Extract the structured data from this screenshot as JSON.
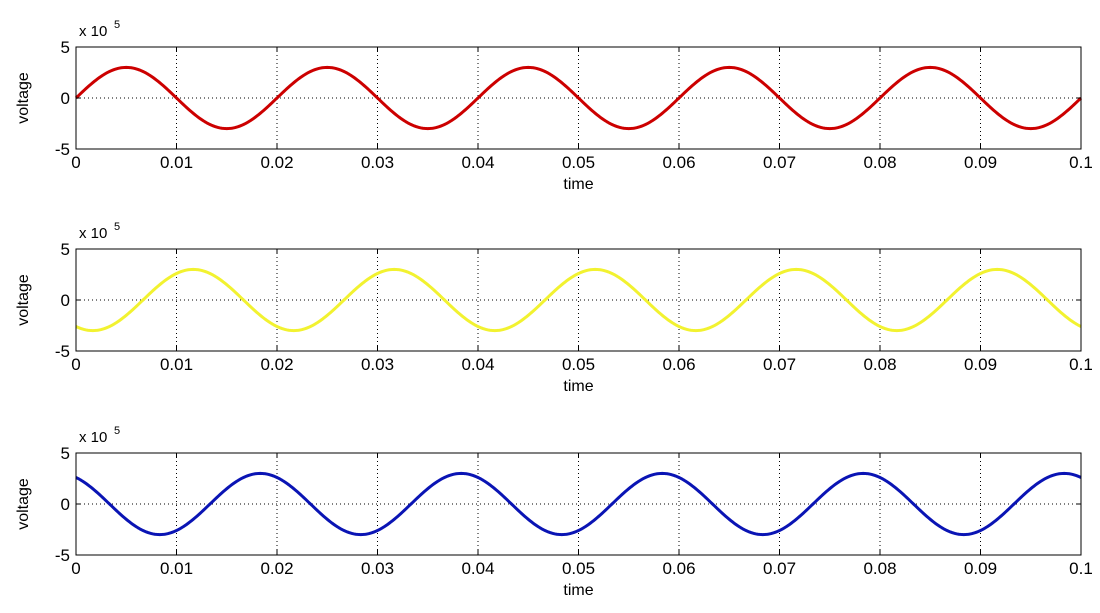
{
  "chart_data": [
    {
      "type": "line",
      "xlabel": "time",
      "ylabel": "voltage",
      "xlim": [
        0,
        0.1
      ],
      "ylim": [
        -5,
        5
      ],
      "y_multiplier": {
        "base": "x 10",
        "exponent": "5"
      },
      "xticks": [
        "0",
        "0.01",
        "0.02",
        "0.03",
        "0.04",
        "0.05",
        "0.06",
        "0.07",
        "0.08",
        "0.09",
        "0.1"
      ],
      "yticks": [
        "5",
        "0",
        "-5"
      ],
      "grid": true,
      "series": [
        {
          "color": "#cc0000",
          "amplitude": 3,
          "frequency": 50,
          "phase_deg": 0,
          "x": [
            0,
            0.005,
            0.01,
            0.015,
            0.02,
            0.025,
            0.03,
            0.035,
            0.04,
            0.045,
            0.05,
            0.055,
            0.06,
            0.065,
            0.07,
            0.075,
            0.08,
            0.085,
            0.09,
            0.095,
            0.1
          ],
          "y": [
            0,
            3,
            0,
            -3,
            0,
            3,
            0,
            -3,
            0,
            3,
            0,
            -3,
            0,
            3,
            0,
            -3,
            0,
            3,
            0,
            -3,
            0
          ]
        }
      ]
    },
    {
      "type": "line",
      "xlabel": "time",
      "ylabel": "voltage",
      "xlim": [
        0,
        0.1
      ],
      "ylim": [
        -5,
        5
      ],
      "y_multiplier": {
        "base": "x 10",
        "exponent": "5"
      },
      "xticks": [
        "0",
        "0.01",
        "0.02",
        "0.03",
        "0.04",
        "0.05",
        "0.06",
        "0.07",
        "0.08",
        "0.09",
        "0.1"
      ],
      "yticks": [
        "5",
        "0",
        "-5"
      ],
      "grid": true,
      "series": [
        {
          "color": "#f2f230",
          "amplitude": 3,
          "frequency": 50,
          "phase_deg": -120,
          "x": [
            0,
            0.0017,
            0.0067,
            0.0117,
            0.0167,
            0.0217,
            0.0267,
            0.0317,
            0.0367,
            0.0417,
            0.0467,
            0.0517,
            0.0567,
            0.0617,
            0.0667,
            0.0717,
            0.0767,
            0.0817,
            0.0867,
            0.0917,
            0.0967,
            0.1
          ],
          "y": [
            -2.6,
            -3,
            0,
            3,
            0,
            -3,
            0,
            3,
            0,
            -3,
            0,
            3,
            0,
            -3,
            0,
            3,
            0,
            -3,
            0,
            3,
            0,
            -2.6
          ]
        }
      ]
    },
    {
      "type": "line",
      "xlabel": "time",
      "ylabel": "voltage",
      "xlim": [
        0,
        0.1
      ],
      "ylim": [
        -5,
        5
      ],
      "y_multiplier": {
        "base": "x 10",
        "exponent": "5"
      },
      "xticks": [
        "0",
        "0.01",
        "0.02",
        "0.03",
        "0.04",
        "0.05",
        "0.06",
        "0.07",
        "0.08",
        "0.09",
        "0.1"
      ],
      "yticks": [
        "5",
        "0",
        "-5"
      ],
      "grid": true,
      "series": [
        {
          "color": "#0a14b4",
          "amplitude": 3,
          "frequency": 50,
          "phase_deg": 120,
          "x": [
            0,
            0.0033,
            0.0083,
            0.0133,
            0.0183,
            0.0233,
            0.0283,
            0.0333,
            0.0383,
            0.0433,
            0.0483,
            0.0533,
            0.0583,
            0.0633,
            0.0683,
            0.0733,
            0.0783,
            0.0833,
            0.0883,
            0.0933,
            0.0983,
            0.1
          ],
          "y": [
            2.6,
            0,
            -3,
            0,
            3,
            0,
            -3,
            0,
            3,
            0,
            -3,
            0,
            3,
            0,
            -3,
            0,
            3,
            0,
            -3,
            0,
            3,
            2.6
          ]
        }
      ]
    }
  ]
}
